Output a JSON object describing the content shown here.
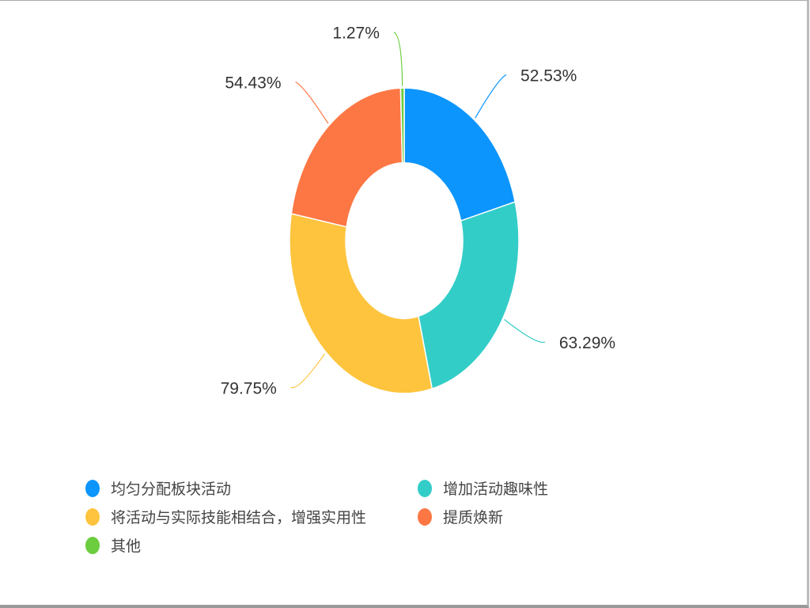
{
  "chart_data": {
    "type": "pie",
    "variant": "donut",
    "categories": [
      "均匀分配板块活动",
      "增加活动趣味性",
      "将活动与实际技能相结合，增强实用性",
      "提质焕新",
      "其他"
    ],
    "values": [
      52.53,
      63.29,
      79.75,
      54.43,
      1.27
    ],
    "labels": [
      "52.53%",
      "63.29%",
      "79.75%",
      "54.43%",
      "1.27%"
    ],
    "colors": [
      "#0c95fc",
      "#33cdc8",
      "#fec43e",
      "#fd7744",
      "#6ccd3e"
    ],
    "legend_position": "bottom"
  }
}
